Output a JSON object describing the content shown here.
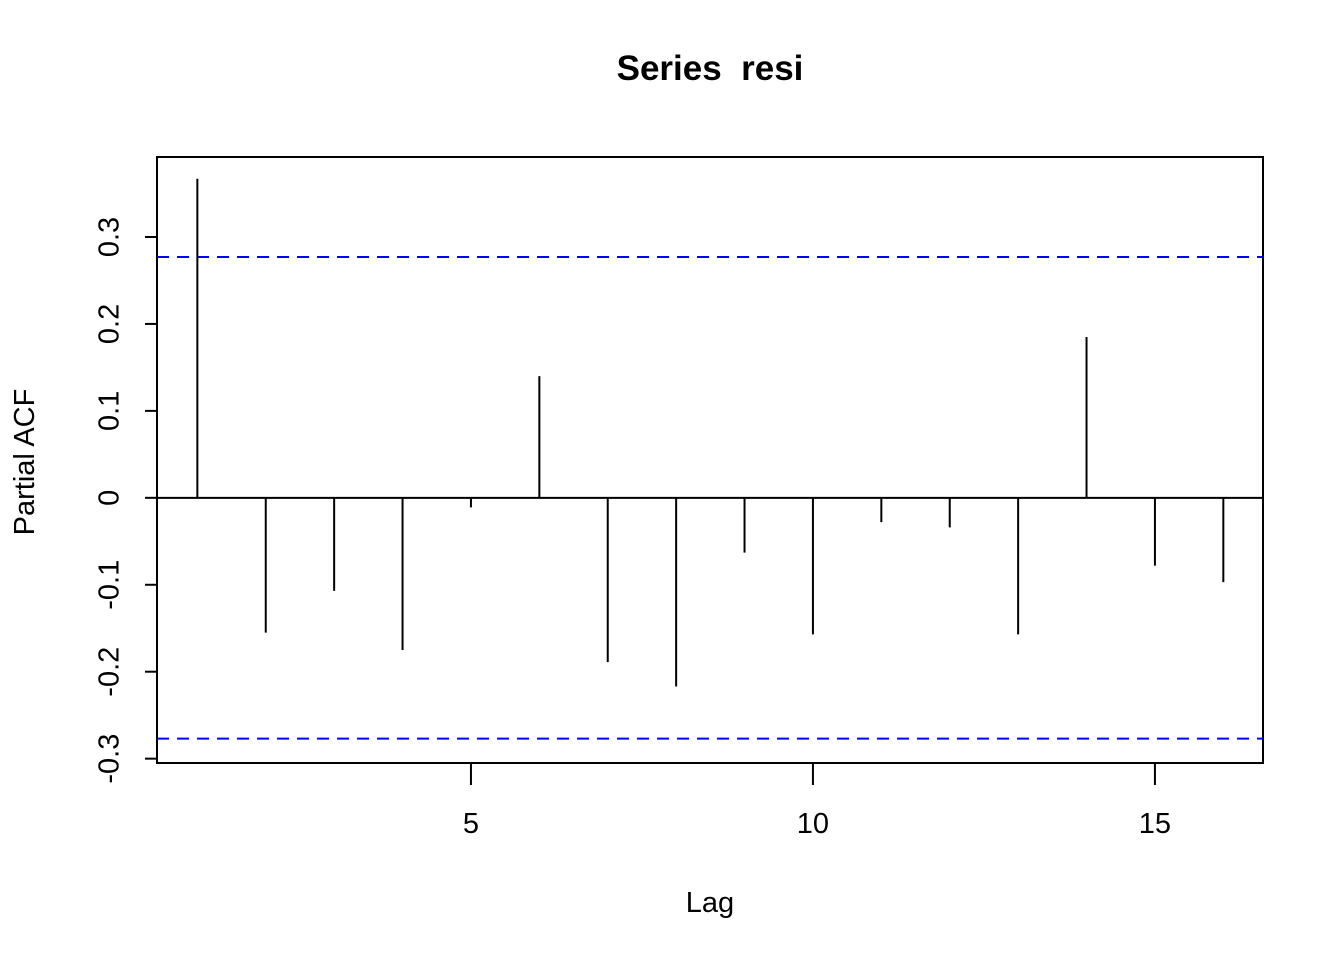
{
  "chart_data": {
    "type": "bar",
    "title": "Series  resi",
    "x_label": "Lag",
    "y_label": "Partial ACF",
    "x": [
      1,
      2,
      3,
      4,
      5,
      6,
      7,
      8,
      9,
      10,
      11,
      12,
      13,
      14,
      15,
      16
    ],
    "values": [
      0.367,
      -0.155,
      -0.107,
      -0.175,
      -0.011,
      0.14,
      -0.189,
      -0.217,
      -0.063,
      -0.157,
      -0.028,
      -0.034,
      -0.157,
      0.185,
      -0.078,
      -0.097
    ],
    "color": "#000000",
    "confidence_bounds": [
      0.277,
      -0.277
    ],
    "confidence_color": "#0000ff",
    "xlim": [
      0.41,
      16.58
    ],
    "xticks": [
      5,
      10,
      15
    ],
    "ylim": [
      -0.305,
      0.392
    ],
    "yticks": [
      -0.3,
      -0.2,
      -0.1,
      0.0,
      0.1,
      0.2,
      0.3
    ]
  }
}
